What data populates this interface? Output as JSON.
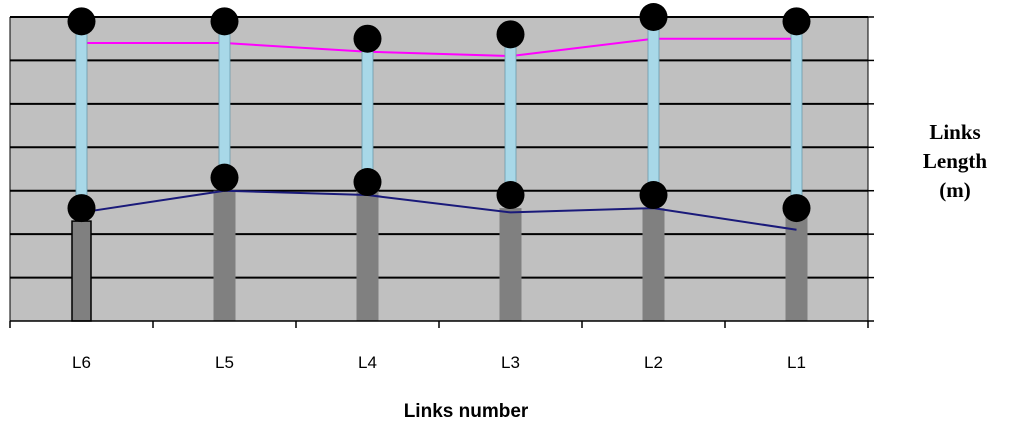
{
  "chart_data": {
    "type": "bar",
    "categories": [
      "L6",
      "L5",
      "L4",
      "L3",
      "L2",
      "L1"
    ],
    "ylim": [
      0,
      7
    ],
    "grid": true,
    "bars": [
      {
        "category": "L6",
        "base": 0,
        "top": 2.3,
        "highlight": true
      },
      {
        "category": "L5",
        "base": 0,
        "top": 3.0
      },
      {
        "category": "L4",
        "base": 0,
        "top": 3.0
      },
      {
        "category": "L3",
        "base": 0,
        "top": 2.6
      },
      {
        "category": "L2",
        "base": 0,
        "top": 2.6
      },
      {
        "category": "L1",
        "base": 0,
        "top": 2.4
      }
    ],
    "links": [
      {
        "category": "L6",
        "lower": 2.6,
        "upper": 6.9
      },
      {
        "category": "L5",
        "lower": 3.3,
        "upper": 6.9
      },
      {
        "category": "L4",
        "lower": 3.2,
        "upper": 6.5
      },
      {
        "category": "L3",
        "lower": 2.9,
        "upper": 6.6
      },
      {
        "category": "L2",
        "lower": 2.9,
        "upper": 7.0
      },
      {
        "category": "L1",
        "lower": 2.6,
        "upper": 6.9
      }
    ],
    "series": [
      {
        "color": "#ff00ff",
        "values": [
          6.4,
          6.4,
          6.2,
          6.1,
          6.5,
          6.5
        ]
      },
      {
        "color": "#1a1a7a",
        "values": [
          2.5,
          3.0,
          2.9,
          2.5,
          2.6,
          2.1
        ]
      }
    ],
    "xlabel": "Links number",
    "side_label": [
      "Links",
      "Length",
      "(m)"
    ],
    "colors": {
      "plot_bg": "#c0c0c0",
      "gridline": "#000000",
      "bar": "#808080",
      "bar_highlight_border": "#000000",
      "link": "#a8d8e8",
      "joint": "#000000"
    }
  }
}
